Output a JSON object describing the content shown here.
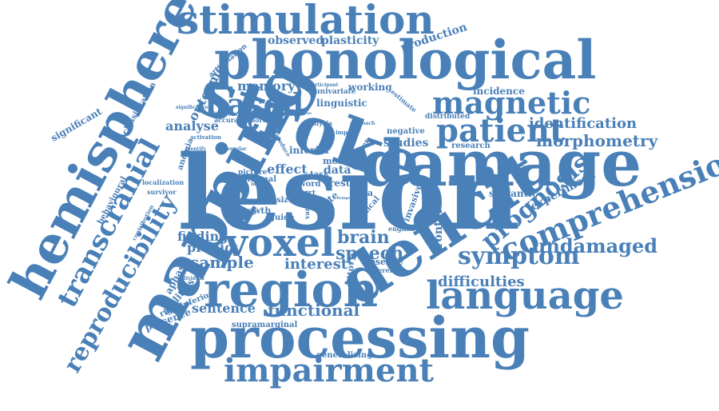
{
  "colors": {
    "word": "#4a80b8",
    "background": "#ffffff"
  },
  "words": [
    "stimulation",
    "phonological",
    "hemisphere",
    "mapping",
    "stroke",
    "lesion",
    "damage",
    "deficit",
    "processing",
    "region",
    "voxel",
    "language",
    "impairment",
    "patient",
    "magnetic",
    "based",
    "comprehension",
    "transcranial",
    "reproducibility",
    "prognosis",
    "symptom",
    "speech",
    "brain",
    "identification",
    "morphometry",
    "undamaged",
    "difficulties",
    "functional",
    "sentence",
    "interest",
    "sample",
    "predict",
    "finding",
    "analyse",
    "memory",
    "outcome",
    "observed",
    "plasticity",
    "production",
    "incidence",
    "working",
    "linguistic",
    "univariate",
    "distributed",
    "studies",
    "research",
    "negative",
    "effect",
    "data",
    "more",
    "inferior",
    "task",
    "aphasia",
    "abilities",
    "significant",
    "classification",
    "behavioural",
    "supramarginal",
    "generalizing",
    "presence",
    "experiment",
    "semantic",
    "resonance",
    "frontal",
    "invasive",
    "absence",
    "different",
    "auditory",
    "english",
    "growth",
    "result",
    "area",
    "clinical",
    "site",
    "guide",
    "normal",
    "picture",
    "size",
    "word",
    "part",
    "variable",
    "rightinferior",
    "anomia",
    "localization",
    "survivor",
    "accuracy",
    "disorder",
    "articulation",
    "participant",
    "analysis",
    "persistent",
    "estimate",
    "activation",
    "individual",
    "contribution",
    "impact",
    "identify",
    "better",
    "approach",
    "impair",
    "previous",
    "difference",
    "opercular",
    "significance",
    "produce",
    "illustrate",
    "focal",
    "temporal",
    "healthy"
  ]
}
